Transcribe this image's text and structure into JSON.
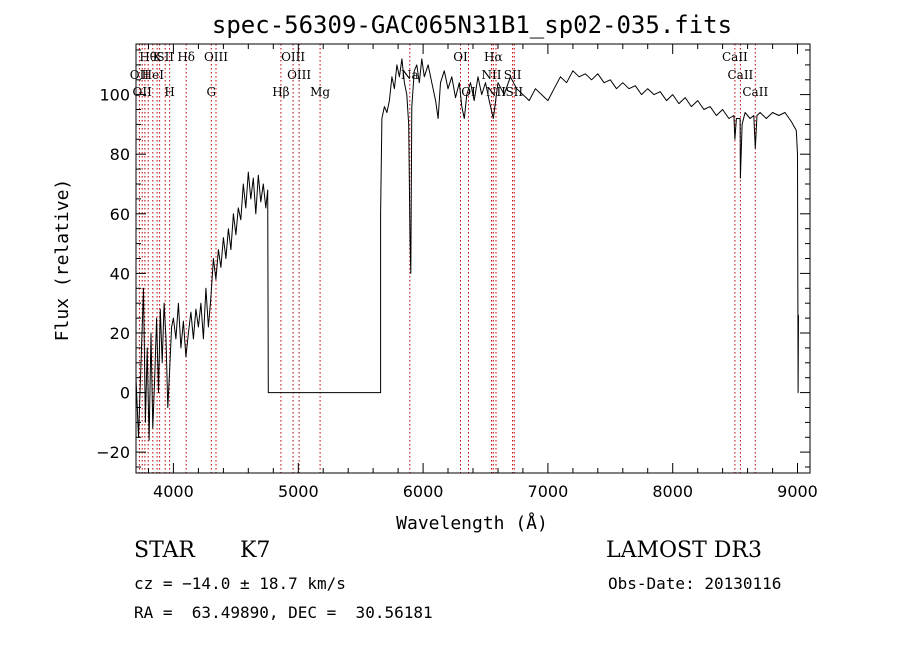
{
  "chart_data": {
    "type": "line",
    "title": "spec-56309-GAC065N31B1_sp02-035.fits",
    "xlabel": "Wavelength (Å)",
    "ylabel": "Flux (relative)",
    "xlim": [
      3700,
      9100
    ],
    "ylim": [
      -27,
      117
    ],
    "xticks": [
      4000,
      5000,
      6000,
      7000,
      8000,
      9000
    ],
    "yticks": [
      -20,
      0,
      20,
      40,
      60,
      80,
      100
    ],
    "grid": false,
    "series": [
      {
        "name": "flux",
        "color": "#000000",
        "points": [
          [
            3700,
            5
          ],
          [
            3720,
            -15
          ],
          [
            3740,
            10
          ],
          [
            3760,
            35
          ],
          [
            3775,
            -10
          ],
          [
            3790,
            15
          ],
          [
            3805,
            -16
          ],
          [
            3820,
            20
          ],
          [
            3835,
            -12
          ],
          [
            3850,
            5
          ],
          [
            3865,
            25
          ],
          [
            3880,
            0
          ],
          [
            3895,
            28
          ],
          [
            3910,
            10
          ],
          [
            3925,
            30
          ],
          [
            3940,
            18
          ],
          [
            3955,
            -5
          ],
          [
            3970,
            8
          ],
          [
            3985,
            22
          ],
          [
            4000,
            25
          ],
          [
            4020,
            18
          ],
          [
            4040,
            30
          ],
          [
            4060,
            15
          ],
          [
            4080,
            24
          ],
          [
            4100,
            12
          ],
          [
            4120,
            20
          ],
          [
            4140,
            27
          ],
          [
            4160,
            18
          ],
          [
            4180,
            28
          ],
          [
            4200,
            22
          ],
          [
            4220,
            30
          ],
          [
            4240,
            18
          ],
          [
            4260,
            35
          ],
          [
            4280,
            22
          ],
          [
            4300,
            32
          ],
          [
            4320,
            45
          ],
          [
            4340,
            38
          ],
          [
            4360,
            48
          ],
          [
            4380,
            42
          ],
          [
            4400,
            52
          ],
          [
            4420,
            45
          ],
          [
            4440,
            55
          ],
          [
            4460,
            48
          ],
          [
            4480,
            60
          ],
          [
            4500,
            53
          ],
          [
            4520,
            62
          ],
          [
            4540,
            58
          ],
          [
            4560,
            70
          ],
          [
            4580,
            62
          ],
          [
            4600,
            74
          ],
          [
            4620,
            65
          ],
          [
            4640,
            72
          ],
          [
            4660,
            60
          ],
          [
            4680,
            73
          ],
          [
            4700,
            64
          ],
          [
            4720,
            70
          ],
          [
            4740,
            62
          ],
          [
            4755,
            68
          ],
          [
            4760,
            0
          ],
          [
            5000,
            0
          ],
          [
            5200,
            0
          ],
          [
            5400,
            0
          ],
          [
            5660,
            0
          ],
          [
            5660,
            60
          ],
          [
            5670,
            92
          ],
          [
            5690,
            96
          ],
          [
            5710,
            94
          ],
          [
            5730,
            98
          ],
          [
            5750,
            106
          ],
          [
            5770,
            102
          ],
          [
            5790,
            110
          ],
          [
            5810,
            106
          ],
          [
            5830,
            112
          ],
          [
            5850,
            104
          ],
          [
            5870,
            100
          ],
          [
            5885,
            90
          ],
          [
            5895,
            52
          ],
          [
            5902,
            40
          ],
          [
            5910,
            96
          ],
          [
            5930,
            108
          ],
          [
            5950,
            110
          ],
          [
            5970,
            104
          ],
          [
            5990,
            112
          ],
          [
            6010,
            106
          ],
          [
            6040,
            110
          ],
          [
            6070,
            104
          ],
          [
            6100,
            98
          ],
          [
            6120,
            92
          ],
          [
            6140,
            104
          ],
          [
            6170,
            108
          ],
          [
            6200,
            102
          ],
          [
            6230,
            106
          ],
          [
            6260,
            99
          ],
          [
            6290,
            104
          ],
          [
            6310,
            96
          ],
          [
            6330,
            92
          ],
          [
            6350,
            100
          ],
          [
            6380,
            104
          ],
          [
            6410,
            98
          ],
          [
            6440,
            106
          ],
          [
            6470,
            100
          ],
          [
            6500,
            104
          ],
          [
            6530,
            98
          ],
          [
            6563,
            92
          ],
          [
            6600,
            104
          ],
          [
            6650,
            100
          ],
          [
            6700,
            106
          ],
          [
            6750,
            102
          ],
          [
            6800,
            100
          ],
          [
            6850,
            98
          ],
          [
            6900,
            102
          ],
          [
            6950,
            100
          ],
          [
            7000,
            98
          ],
          [
            7050,
            102
          ],
          [
            7100,
            106
          ],
          [
            7150,
            104
          ],
          [
            7200,
            108
          ],
          [
            7250,
            106
          ],
          [
            7300,
            107
          ],
          [
            7350,
            105
          ],
          [
            7400,
            107
          ],
          [
            7450,
            104
          ],
          [
            7500,
            105
          ],
          [
            7550,
            102
          ],
          [
            7600,
            104
          ],
          [
            7650,
            102
          ],
          [
            7700,
            103
          ],
          [
            7750,
            100
          ],
          [
            7800,
            102
          ],
          [
            7850,
            100
          ],
          [
            7900,
            101
          ],
          [
            7950,
            98
          ],
          [
            8000,
            100
          ],
          [
            8050,
            97
          ],
          [
            8100,
            99
          ],
          [
            8150,
            96
          ],
          [
            8200,
            98
          ],
          [
            8250,
            95
          ],
          [
            8300,
            96
          ],
          [
            8350,
            93
          ],
          [
            8400,
            95
          ],
          [
            8450,
            92
          ],
          [
            8490,
            93
          ],
          [
            8498,
            85
          ],
          [
            8510,
            92
          ],
          [
            8540,
            92
          ],
          [
            8542,
            72
          ],
          [
            8556,
            90
          ],
          [
            8580,
            94
          ],
          [
            8620,
            92
          ],
          [
            8650,
            93
          ],
          [
            8662,
            82
          ],
          [
            8675,
            93
          ],
          [
            8700,
            94
          ],
          [
            8750,
            92
          ],
          [
            8800,
            94
          ],
          [
            8850,
            93
          ],
          [
            8900,
            94
          ],
          [
            8950,
            91
          ],
          [
            8990,
            88
          ],
          [
            9000,
            80
          ],
          [
            9005,
            0
          ],
          [
            9008,
            26
          ]
        ]
      }
    ],
    "lines": [
      {
        "wavelength": 3727,
        "labels": [
          "OII"
        ]
      },
      {
        "wavelength": 3750,
        "labels": [
          "OII"
        ]
      },
      {
        "wavelength": 3771,
        "labels": [
          "OII"
        ]
      },
      {
        "wavelength": 3798,
        "labels": [
          "Hθ"
        ]
      },
      {
        "wavelength": 3835,
        "labels": [
          "Hη",
          "HeI"
        ]
      },
      {
        "wavelength": 3869,
        "labels": [
          "K"
        ]
      },
      {
        "wavelength": 3889,
        "labels": [
          "HeI"
        ]
      },
      {
        "wavelength": 3934,
        "labels": [
          "SII"
        ]
      },
      {
        "wavelength": 3969,
        "labels": [
          "H"
        ]
      },
      {
        "wavelength": 4102,
        "labels": [
          "Hδ"
        ]
      },
      {
        "wavelength": 4303,
        "labels": [
          "G"
        ]
      },
      {
        "wavelength": 4341,
        "labels": [
          "Hγ",
          "OIII"
        ]
      },
      {
        "wavelength": 4861,
        "labels": [
          "Hβ"
        ]
      },
      {
        "wavelength": 4959,
        "labels": [
          "OIII"
        ]
      },
      {
        "wavelength": 5007,
        "labels": [
          "OIII"
        ]
      },
      {
        "wavelength": 5175,
        "labels": [
          "Mg"
        ]
      },
      {
        "wavelength": 5894,
        "labels": [
          "Na"
        ]
      },
      {
        "wavelength": 6300,
        "labels": [
          "OI"
        ]
      },
      {
        "wavelength": 6364,
        "labels": [
          "OI"
        ]
      },
      {
        "wavelength": 6548,
        "labels": [
          "NII"
        ]
      },
      {
        "wavelength": 6563,
        "labels": [
          "Hα"
        ]
      },
      {
        "wavelength": 6584,
        "labels": [
          "NII"
        ]
      },
      {
        "wavelength": 6717,
        "labels": [
          "SII"
        ]
      },
      {
        "wavelength": 6731,
        "labels": [
          "SII"
        ]
      },
      {
        "wavelength": 8498,
        "labels": [
          "CaII"
        ]
      },
      {
        "wavelength": 8542,
        "labels": [
          "CaII"
        ]
      },
      {
        "wavelength": 8662,
        "labels": [
          "CaII"
        ]
      }
    ],
    "line_label_rows": [
      [
        "Hθ",
        "K",
        "Hδ",
        "OIII",
        "OIII",
        "OI",
        "Hα",
        "SII",
        "CaII"
      ],
      [
        "OII",
        "HeI",
        "SII",
        "Hγ",
        "OIII",
        "Na",
        "NII",
        "CaII"
      ],
      [
        "OII",
        "Hη",
        "H",
        "G",
        "Hβ",
        "Mg",
        "OI",
        "NII",
        "SII",
        "CaII"
      ]
    ],
    "line_color": "#c00000"
  },
  "info": {
    "object_class": "STAR",
    "subclass": "K7",
    "redshift": "cz = −14.0 ± 18.7 km/s",
    "coordinates": "RA =  63.49890, DEC =  30.56181",
    "survey": "LAMOST DR3",
    "obs_date": "Obs-Date: 20130116"
  }
}
